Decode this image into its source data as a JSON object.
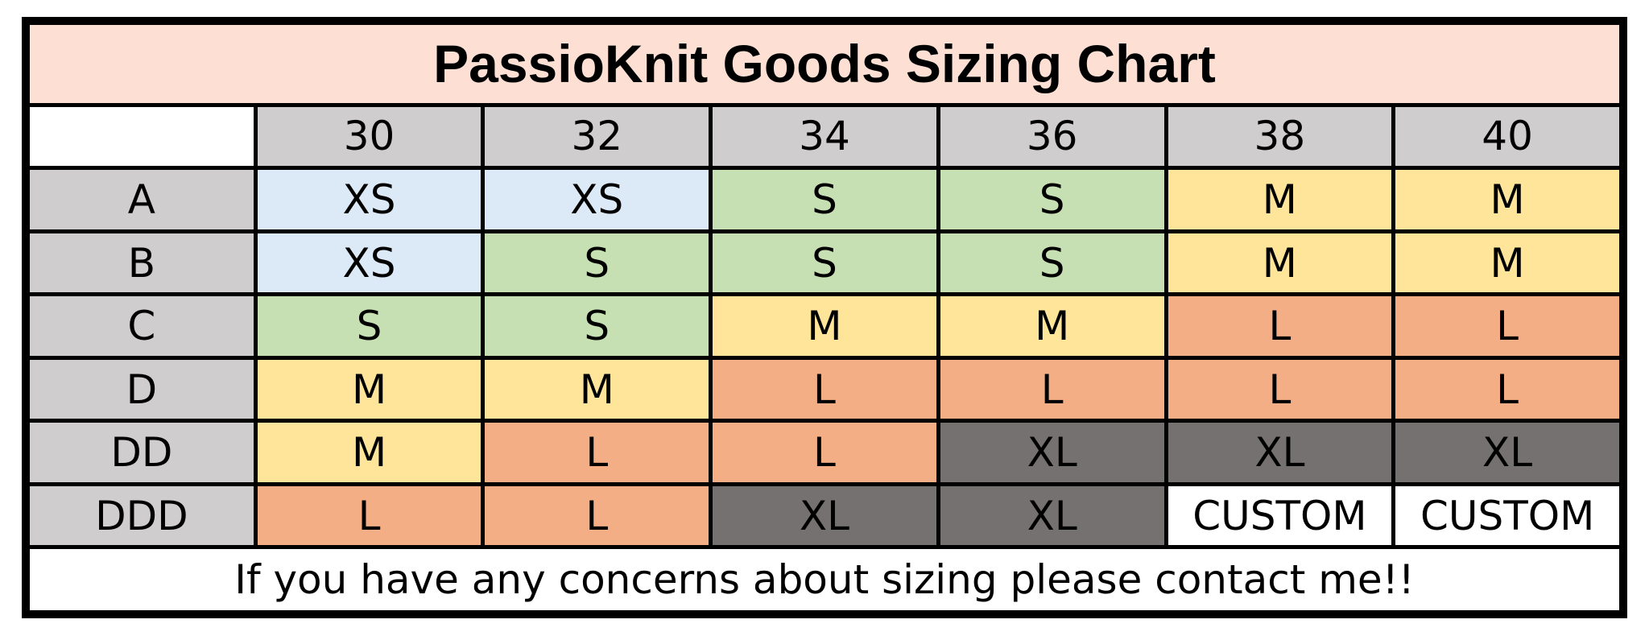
{
  "title": "PassioKnit Goods Sizing Chart",
  "band_sizes": [
    "30",
    "32",
    "34",
    "36",
    "38",
    "40"
  ],
  "rows": [
    {
      "cup": "A",
      "sizes": [
        "XS",
        "XS",
        "S",
        "S",
        "M",
        "M"
      ]
    },
    {
      "cup": "B",
      "sizes": [
        "XS",
        "S",
        "S",
        "S",
        "M",
        "M"
      ]
    },
    {
      "cup": "C",
      "sizes": [
        "S",
        "S",
        "M",
        "M",
        "L",
        "L"
      ]
    },
    {
      "cup": "D",
      "sizes": [
        "M",
        "M",
        "L",
        "L",
        "L",
        "L"
      ]
    },
    {
      "cup": "DD",
      "sizes": [
        "M",
        "L",
        "L",
        "XL",
        "XL",
        "XL"
      ]
    },
    {
      "cup": "DDD",
      "sizes": [
        "L",
        "L",
        "XL",
        "XL",
        "CUSTOM",
        "CUSTOM"
      ]
    }
  ],
  "size_colors": {
    "XS": "#dce9f6",
    "S": "#c6e0b4",
    "M": "#fee599",
    "L": "#f3ae85",
    "XL": "#757170",
    "CUSTOM": "#ffffff"
  },
  "title_background": "#fde0d3",
  "header_background": "#cfcdcd",
  "footer_note": "If you have any concerns about sizing please contact me!!"
}
